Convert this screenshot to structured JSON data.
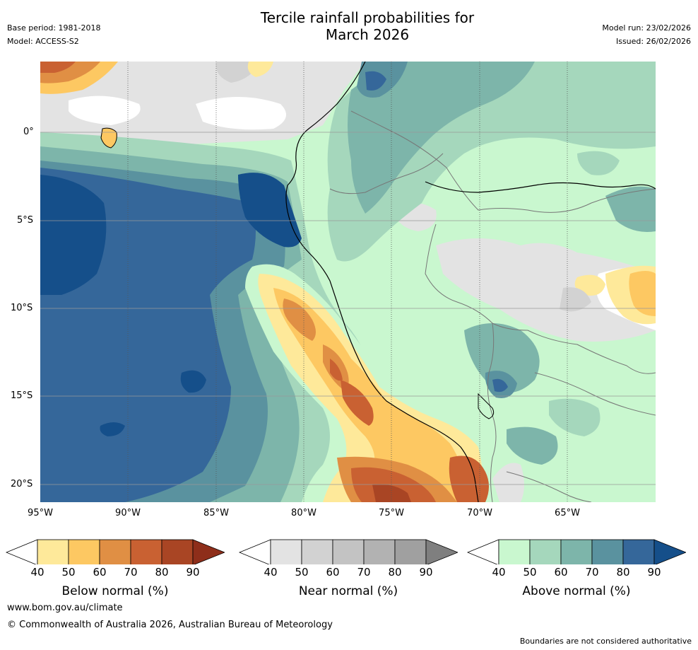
{
  "header": {
    "title_line1": "Tercile rainfall probabilities for",
    "title_line2": "March 2026",
    "base_period": "Base period: 1981-2018",
    "model": "Model: ACCESS-S2",
    "model_run": "Model run: 23/02/2026",
    "issued": "Issued: 26/02/2026"
  },
  "map": {
    "lat_labels": [
      "0°",
      "5°S",
      "10°S",
      "15°S",
      "20°S"
    ],
    "lon_labels": [
      "95°W",
      "90°W",
      "85°W",
      "80°W",
      "75°W",
      "70°W",
      "65°W"
    ],
    "colors": {
      "white": "#ffffff",
      "below": [
        "#fee99a",
        "#fdc862",
        "#e08f44",
        "#c96132",
        "#a94524",
        "#8e2e1a"
      ],
      "near": [
        "#e3e3e3",
        "#d2d2d2",
        "#c3c3c3",
        "#b2b2b2",
        "#a0a0a0",
        "#7f7f7f"
      ],
      "above": [
        "#c9f7cf",
        "#a5d7bc",
        "#7db5aa",
        "#5a929f",
        "#35679a",
        "#154f8a"
      ]
    }
  },
  "legends": [
    {
      "name": "below",
      "label": "Below normal (%)",
      "ticks": [
        "40",
        "50",
        "60",
        "70",
        "80",
        "90"
      ]
    },
    {
      "name": "near",
      "label": "Near normal (%)",
      "ticks": [
        "40",
        "50",
        "60",
        "70",
        "80",
        "90"
      ]
    },
    {
      "name": "above",
      "label": "Above normal (%)",
      "ticks": [
        "40",
        "50",
        "60",
        "70",
        "80",
        "90"
      ]
    }
  ],
  "footer": {
    "website": "www.bom.gov.au/climate",
    "copyright": "© Commonwealth of Australia 2026, Australian Bureau of Meteorology",
    "disclaimer": "Boundaries are not considered authoritative"
  }
}
